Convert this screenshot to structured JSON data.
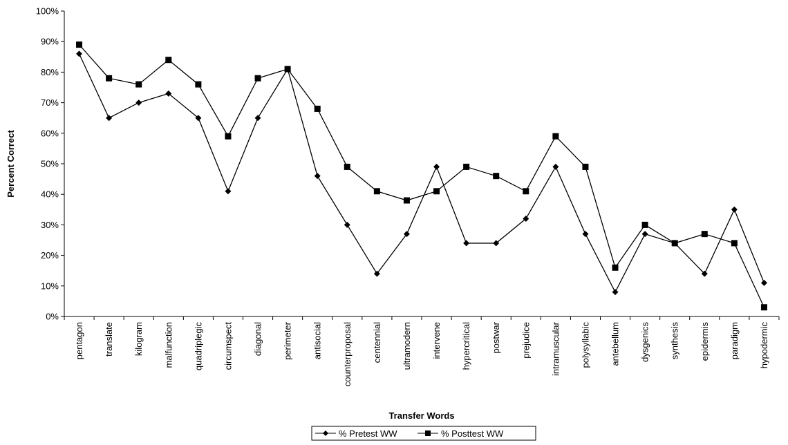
{
  "chart_data": {
    "type": "line",
    "title": "",
    "xlabel": "Transfer Words",
    "ylabel": "Percent Correct",
    "ylim": [
      0,
      100
    ],
    "y_ticks": [
      "0%",
      "10%",
      "20%",
      "30%",
      "40%",
      "50%",
      "60%",
      "70%",
      "80%",
      "90%",
      "100%"
    ],
    "grid": false,
    "legend_position": "bottom",
    "categories": [
      "pentagon",
      "translate",
      "kilogram",
      "malfunction",
      "quadriplegic",
      "circumspect",
      "diagonal",
      "perimeter",
      "antisocial",
      "counterproposal",
      "centennial",
      "ultramodern",
      "intervene",
      "hypercritical",
      "postwar",
      "prejudice",
      "intramuscular",
      "polysyllabic",
      "antebellum",
      "dysgenics",
      "synthesis",
      "epidermis",
      "paradigm",
      "hypodermic"
    ],
    "series": [
      {
        "name": "% Pretest WW",
        "marker": "diamond",
        "color": "#000000",
        "values": [
          86,
          65,
          70,
          73,
          65,
          41,
          65,
          81,
          46,
          30,
          14,
          27,
          49,
          24,
          24,
          32,
          49,
          27,
          8,
          27,
          24,
          14,
          35,
          11
        ]
      },
      {
        "name": "% Posttest WW",
        "marker": "square",
        "color": "#000000",
        "values": [
          89,
          78,
          76,
          84,
          76,
          59,
          78,
          81,
          68,
          49,
          41,
          38,
          41,
          49,
          46,
          41,
          59,
          49,
          16,
          30,
          24,
          27,
          24,
          3
        ]
      }
    ]
  }
}
